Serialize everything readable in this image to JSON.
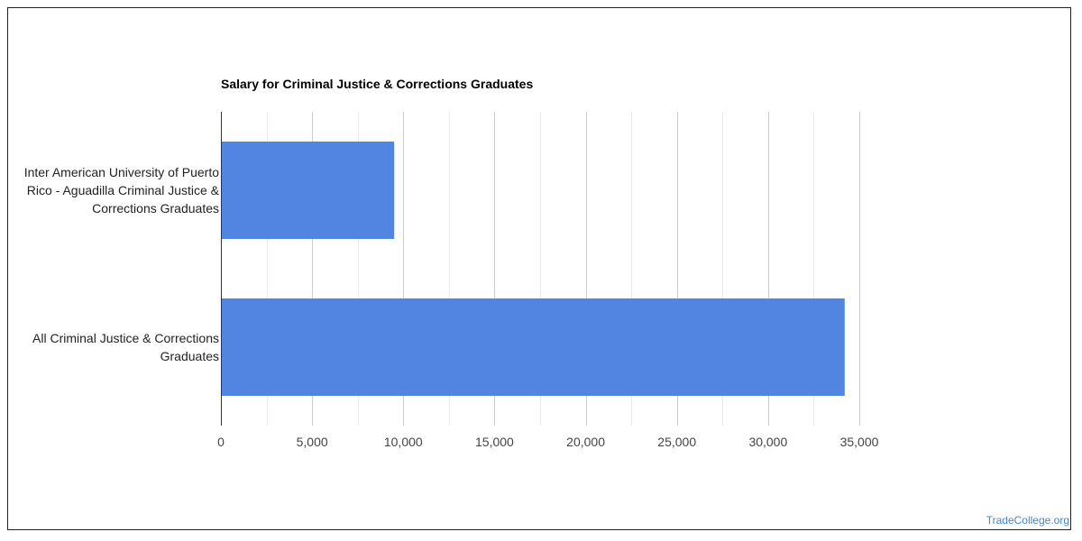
{
  "chart_data": {
    "type": "bar",
    "orientation": "horizontal",
    "title": "Salary for Criminal Justice & Corrections Graduates",
    "categories": [
      "Inter American University of Puerto Rico - Aguadilla Criminal Justice & Corrections Graduates",
      "All Criminal Justice & Corrections Graduates"
    ],
    "values": [
      9500,
      34200
    ],
    "xlim": [
      0,
      35000
    ],
    "x_ticks": [
      0,
      5000,
      10000,
      15000,
      20000,
      25000,
      30000,
      35000
    ],
    "x_tick_labels": [
      "0",
      "5,000",
      "10,000",
      "15,000",
      "20,000",
      "25,000",
      "30,000",
      "35,000"
    ],
    "xlabel": "",
    "ylabel": "",
    "grid": true,
    "bar_color": "#5285e2",
    "grid_color": "#cccccc"
  },
  "watermark": "TradeCollege.org"
}
